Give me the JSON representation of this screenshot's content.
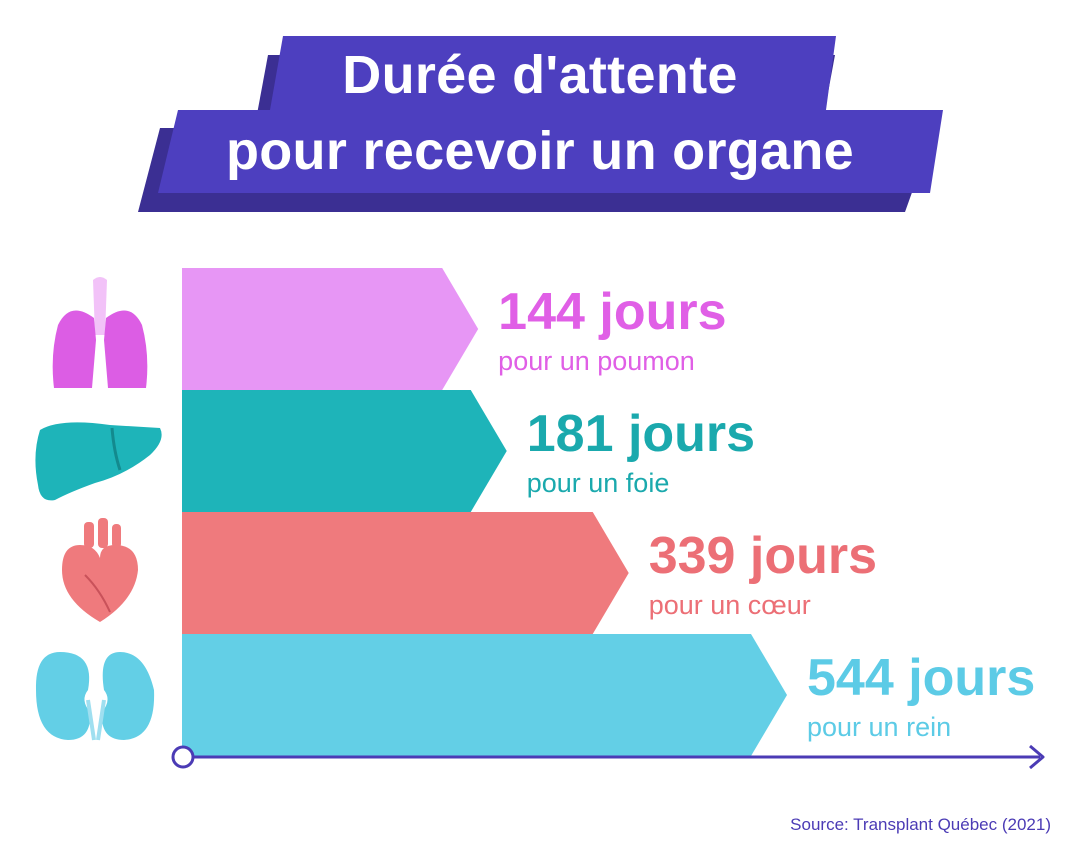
{
  "header": {
    "title_line1": "Durée d'attente",
    "title_line2": "pour recevoir un organe"
  },
  "chart_data": {
    "type": "bar",
    "orientation": "horizontal",
    "title": "Durée d'attente pour recevoir un organe",
    "categories": [
      "poumon",
      "foie",
      "cœur",
      "rein"
    ],
    "values": [
      144,
      181,
      339,
      544
    ],
    "unit": "jours",
    "value_labels": [
      "144 jours",
      "181 jours",
      "339 jours",
      "544 jours"
    ],
    "sub_labels": [
      "pour un poumon",
      "pour un foie",
      "pour un cœur",
      "pour un rein"
    ],
    "colors": [
      "#e796f5",
      "#1eb4b9",
      "#ef7a7d",
      "#63cfe6"
    ],
    "label_colors": [
      "#e05fe6",
      "#1aa9ad",
      "#ec6f76",
      "#5ccbe6"
    ],
    "icons": [
      "lungs-icon",
      "liver-icon",
      "heart-icon",
      "kidneys-icon"
    ],
    "xlim": [
      0,
      544
    ]
  },
  "colors": {
    "title_bg": "#4d3fbf",
    "title_shadow": "#3b2f93",
    "axis": "#4b3bb5"
  },
  "footer": {
    "source": "Source: Transplant Québec (2021)"
  }
}
